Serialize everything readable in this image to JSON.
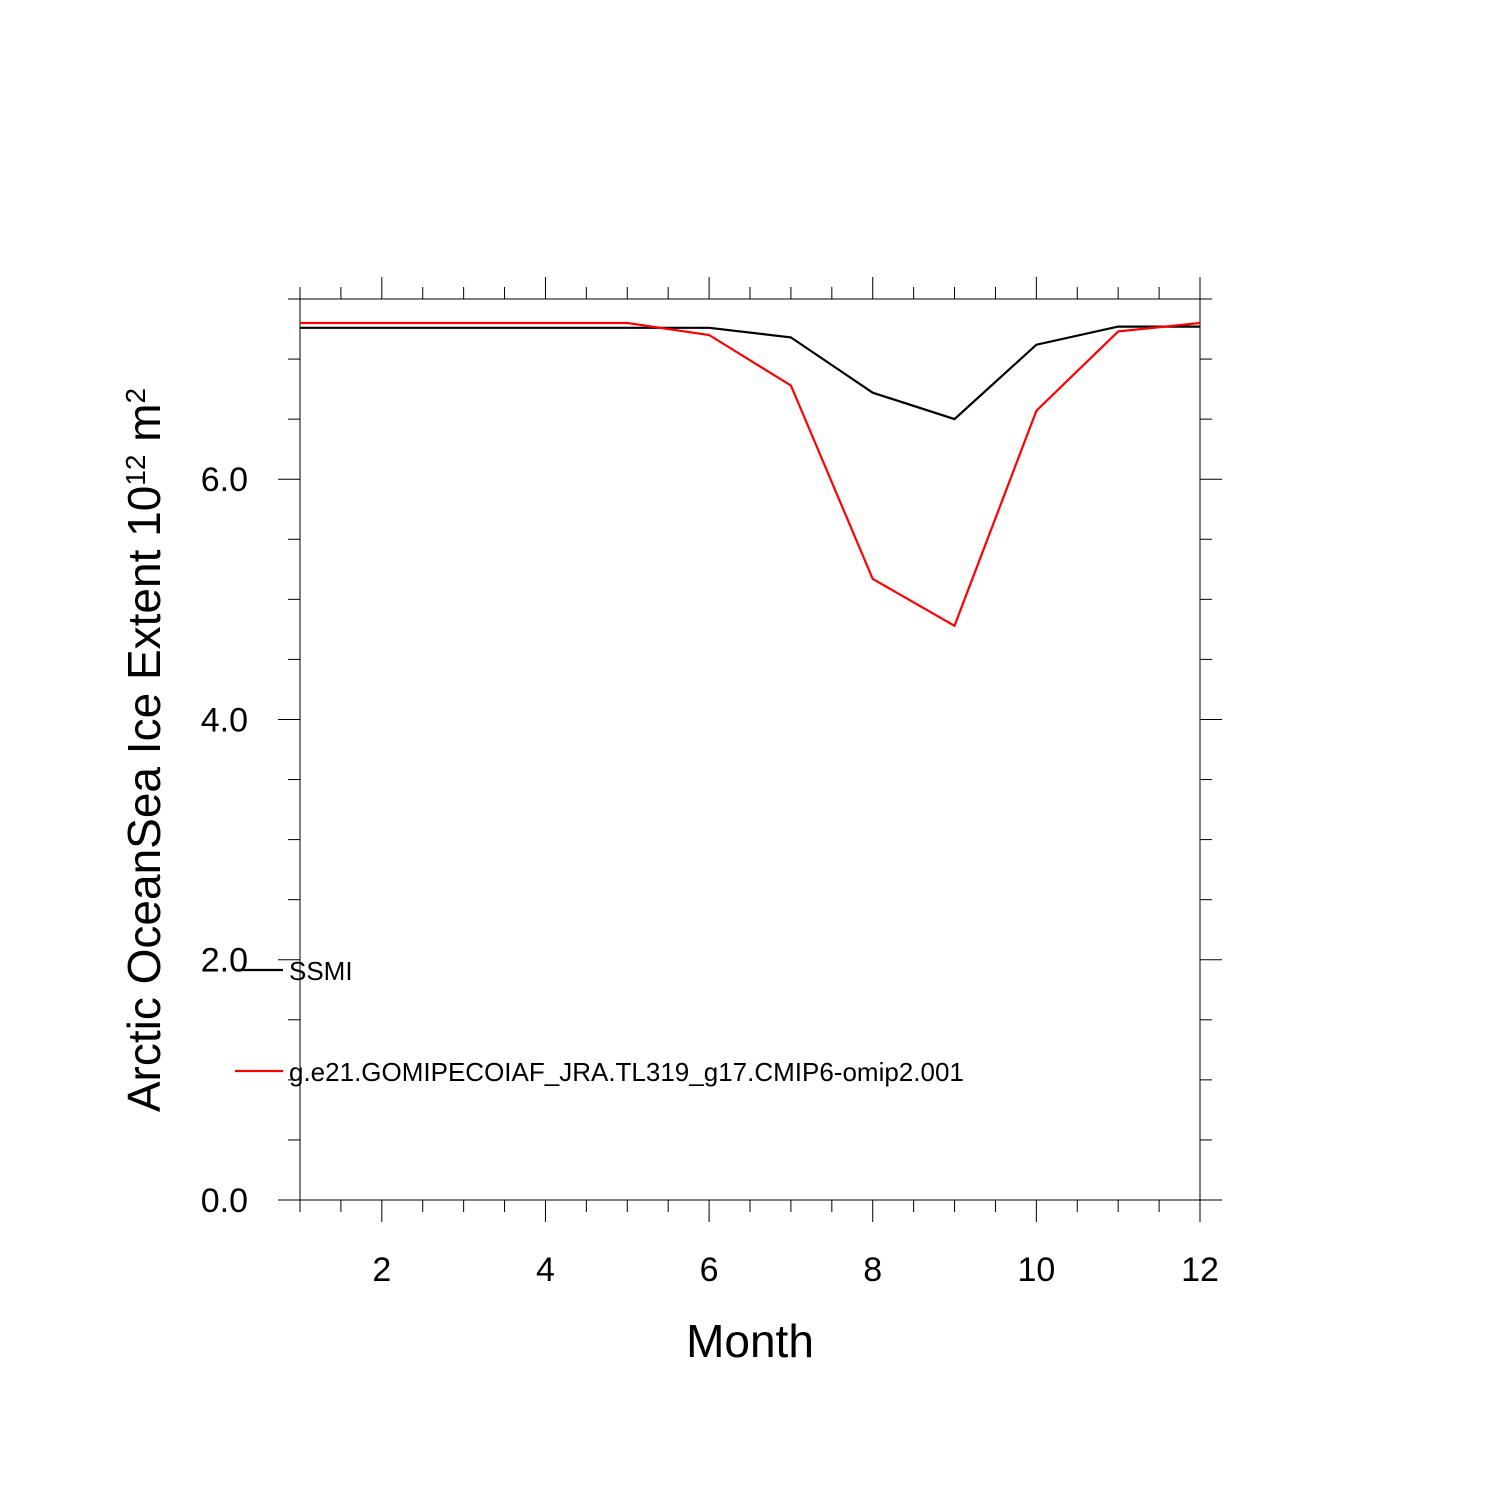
{
  "chart_data": {
    "type": "line",
    "xlabel": "Month",
    "ylabel_main": "Arctic OceanSea Ice Extent 10",
    "ylabel_exp": "12",
    "ylabel_unit": " m",
    "ylabel_unit_exp": "2",
    "xlim": [
      1,
      12
    ],
    "ylim": [
      0,
      7.5
    ],
    "x_major_ticks": [
      2,
      4,
      6,
      8,
      10,
      12
    ],
    "x_tick_labels": [
      "2",
      "4",
      "6",
      "8",
      "10",
      "12"
    ],
    "y_major_ticks": [
      0,
      2,
      4,
      6
    ],
    "y_tick_labels": [
      "0.0",
      "2.0",
      "4.0",
      "6.0"
    ],
    "x": [
      1,
      2,
      3,
      4,
      5,
      6,
      7,
      8,
      9,
      10,
      11,
      12
    ],
    "series": [
      {
        "name": "SSMI",
        "color": "#000000",
        "values": [
          7.26,
          7.26,
          7.26,
          7.26,
          7.26,
          7.26,
          7.18,
          6.72,
          6.5,
          7.12,
          7.27,
          7.27
        ]
      },
      {
        "name": "g.e21.GOMIPECOIAF_JRA.TL319_g17.CMIP6-omip2.001",
        "color": "#ff0000",
        "values": [
          7.3,
          7.3,
          7.3,
          7.3,
          7.3,
          7.2,
          6.78,
          5.17,
          4.78,
          6.57,
          7.23,
          7.3
        ]
      }
    ]
  }
}
